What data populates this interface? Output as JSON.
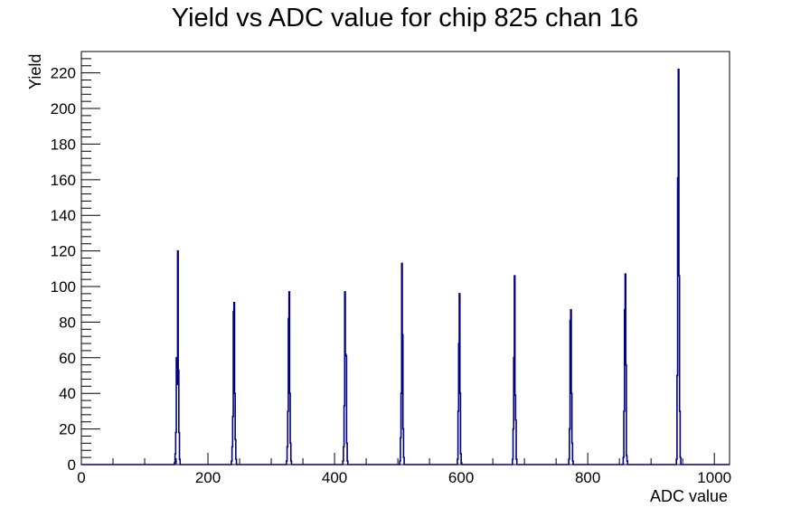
{
  "chart_data": {
    "type": "histogram",
    "title": "Yield vs ADC value for chip 825 chan 16",
    "xlabel": "ADC value",
    "ylabel": "Yield",
    "xlim": [
      0,
      1024
    ],
    "ylim": [
      0,
      232
    ],
    "x_ticks": [
      0,
      200,
      400,
      600,
      800,
      1000
    ],
    "y_ticks": [
      0,
      20,
      40,
      60,
      80,
      100,
      120,
      140,
      160,
      180,
      200,
      220
    ],
    "grid": false,
    "line_color": "#000080",
    "bin_width": 1,
    "bins": [
      {
        "x": 147,
        "y": 1
      },
      {
        "x": 148,
        "y": 6
      },
      {
        "x": 149,
        "y": 18
      },
      {
        "x": 150,
        "y": 60
      },
      {
        "x": 151,
        "y": 45
      },
      {
        "x": 152,
        "y": 120
      },
      {
        "x": 153,
        "y": 53
      },
      {
        "x": 154,
        "y": 18
      },
      {
        "x": 155,
        "y": 3
      },
      {
        "x": 237,
        "y": 2
      },
      {
        "x": 238,
        "y": 10
      },
      {
        "x": 239,
        "y": 27
      },
      {
        "x": 240,
        "y": 86
      },
      {
        "x": 241,
        "y": 91
      },
      {
        "x": 242,
        "y": 40
      },
      {
        "x": 243,
        "y": 14
      },
      {
        "x": 244,
        "y": 3
      },
      {
        "x": 324,
        "y": 2
      },
      {
        "x": 325,
        "y": 10
      },
      {
        "x": 326,
        "y": 30
      },
      {
        "x": 327,
        "y": 82
      },
      {
        "x": 328,
        "y": 97
      },
      {
        "x": 329,
        "y": 40
      },
      {
        "x": 330,
        "y": 12
      },
      {
        "x": 331,
        "y": 2
      },
      {
        "x": 413,
        "y": 2
      },
      {
        "x": 414,
        "y": 10
      },
      {
        "x": 415,
        "y": 33
      },
      {
        "x": 416,
        "y": 97
      },
      {
        "x": 417,
        "y": 62
      },
      {
        "x": 418,
        "y": 61
      },
      {
        "x": 419,
        "y": 12
      },
      {
        "x": 420,
        "y": 2
      },
      {
        "x": 503,
        "y": 2
      },
      {
        "x": 504,
        "y": 15
      },
      {
        "x": 505,
        "y": 40
      },
      {
        "x": 506,
        "y": 113
      },
      {
        "x": 507,
        "y": 73
      },
      {
        "x": 508,
        "y": 20
      },
      {
        "x": 509,
        "y": 4
      },
      {
        "x": 594,
        "y": 3
      },
      {
        "x": 595,
        "y": 30
      },
      {
        "x": 596,
        "y": 68
      },
      {
        "x": 597,
        "y": 96
      },
      {
        "x": 598,
        "y": 40
      },
      {
        "x": 599,
        "y": 6
      },
      {
        "x": 600,
        "y": 1
      },
      {
        "x": 681,
        "y": 3
      },
      {
        "x": 682,
        "y": 20
      },
      {
        "x": 683,
        "y": 60
      },
      {
        "x": 684,
        "y": 106
      },
      {
        "x": 685,
        "y": 39
      },
      {
        "x": 686,
        "y": 25
      },
      {
        "x": 687,
        "y": 3
      },
      {
        "x": 770,
        "y": 3
      },
      {
        "x": 771,
        "y": 20
      },
      {
        "x": 772,
        "y": 81
      },
      {
        "x": 773,
        "y": 87
      },
      {
        "x": 774,
        "y": 40
      },
      {
        "x": 775,
        "y": 12
      },
      {
        "x": 776,
        "y": 2
      },
      {
        "x": 856,
        "y": 4
      },
      {
        "x": 857,
        "y": 30
      },
      {
        "x": 858,
        "y": 87
      },
      {
        "x": 859,
        "y": 107
      },
      {
        "x": 860,
        "y": 56
      },
      {
        "x": 861,
        "y": 5
      },
      {
        "x": 862,
        "y": 2
      },
      {
        "x": 940,
        "y": 3
      },
      {
        "x": 941,
        "y": 50
      },
      {
        "x": 942,
        "y": 161
      },
      {
        "x": 943,
        "y": 222
      },
      {
        "x": 944,
        "y": 106
      },
      {
        "x": 945,
        "y": 30
      },
      {
        "x": 946,
        "y": 4
      }
    ]
  }
}
